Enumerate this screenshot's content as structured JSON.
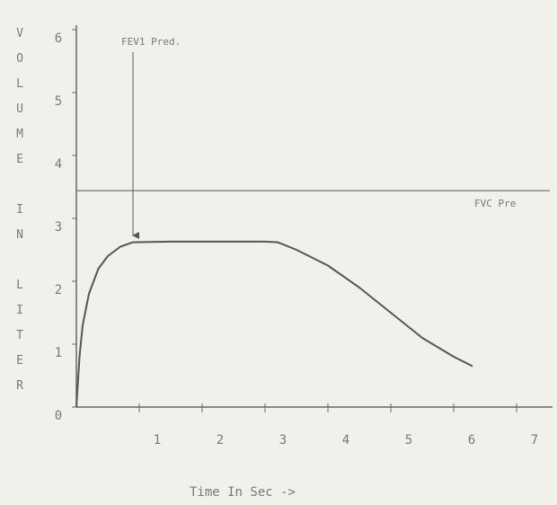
{
  "chart_data": {
    "type": "line",
    "y_label": "VOLUME IN LITER",
    "x_label": "Time In Sec ->",
    "x": [
      0,
      0.05,
      0.1,
      0.2,
      0.35,
      0.5,
      0.7,
      0.9,
      1.5,
      2,
      2.5,
      3,
      3.2,
      3.5,
      4,
      4.5,
      5,
      5.5,
      6,
      6.3
    ],
    "series": [
      {
        "color": "#555555",
        "values": [
          0,
          0.8,
          1.3,
          1.8,
          2.2,
          2.4,
          2.55,
          2.62,
          2.63,
          2.63,
          2.63,
          2.63,
          2.62,
          2.5,
          2.25,
          1.9,
          1.5,
          1.1,
          0.8,
          0.65
        ]
      }
    ],
    "fvc_pred": {
      "label": "FVC Pre",
      "value": 3.44
    },
    "fev1_pred": {
      "label": "FEV1 Pred.",
      "x": 0.9
    },
    "xlim": [
      0,
      7.5
    ],
    "xticks": [
      1,
      2,
      3,
      4,
      5,
      6,
      7
    ],
    "ylim": [
      0,
      6
    ],
    "yticks": [
      0,
      1,
      2,
      3,
      4,
      5,
      6
    ]
  }
}
